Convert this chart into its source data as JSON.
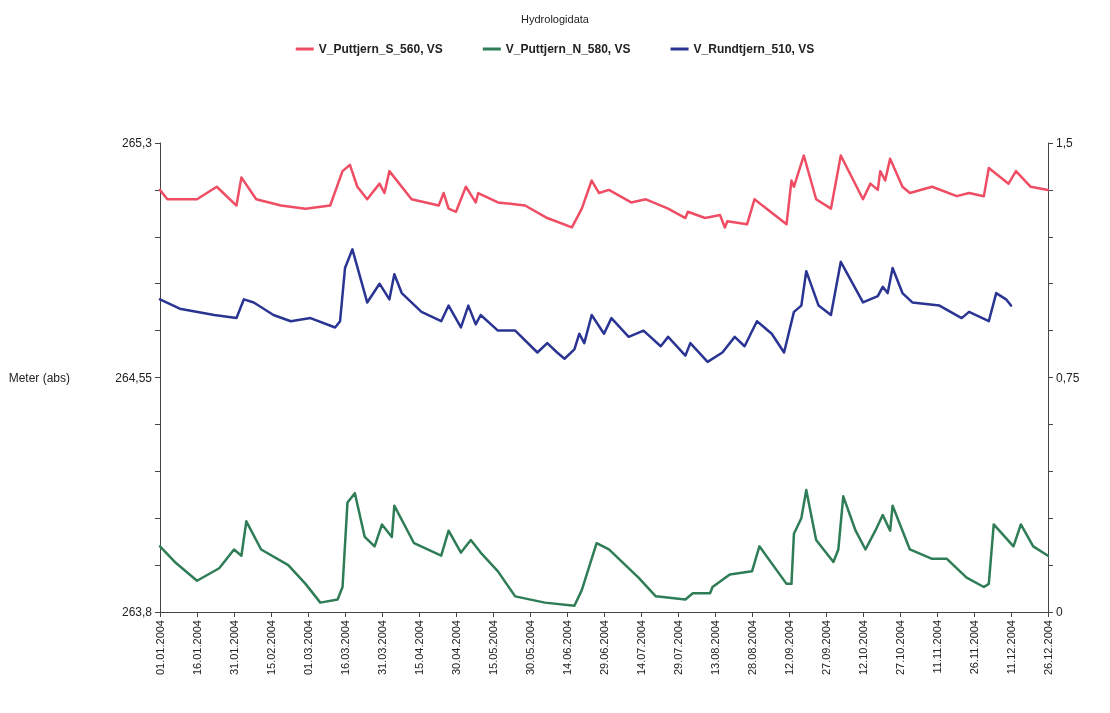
{
  "chart_data": {
    "type": "line",
    "title": "Hydrologidata",
    "ylabel": "Meter (abs)",
    "legend": "top",
    "grid": false,
    "xlim": [
      "2004-01-01",
      "2004-12-26"
    ],
    "xticks": [
      {
        "value": "2004-01-01",
        "label": "01.01.2004"
      },
      {
        "value": "2004-01-16",
        "label": "16.01.2004"
      },
      {
        "value": "2004-01-31",
        "label": "31.01.2004"
      },
      {
        "value": "2004-02-15",
        "label": "15.02.2004"
      },
      {
        "value": "2004-03-01",
        "label": "01.03.2004"
      },
      {
        "value": "2004-03-16",
        "label": "16.03.2004"
      },
      {
        "value": "2004-03-31",
        "label": "31.03.2004"
      },
      {
        "value": "2004-04-15",
        "label": "15.04.2004"
      },
      {
        "value": "2004-04-30",
        "label": "30.04.2004"
      },
      {
        "value": "2004-05-15",
        "label": "15.05.2004"
      },
      {
        "value": "2004-05-30",
        "label": "30.05.2004"
      },
      {
        "value": "2004-06-14",
        "label": "14.06.2004"
      },
      {
        "value": "2004-06-29",
        "label": "29.06.2004"
      },
      {
        "value": "2004-07-14",
        "label": "14.07.2004"
      },
      {
        "value": "2004-07-29",
        "label": "29.07.2004"
      },
      {
        "value": "2004-08-13",
        "label": "13.08.2004"
      },
      {
        "value": "2004-08-28",
        "label": "28.08.2004"
      },
      {
        "value": "2004-09-12",
        "label": "12.09.2004"
      },
      {
        "value": "2004-09-27",
        "label": "27.09.2004"
      },
      {
        "value": "2004-10-12",
        "label": "12.10.2004"
      },
      {
        "value": "2004-10-27",
        "label": "27.10.2004"
      },
      {
        "value": "2004-11-11",
        "label": "11.11.2004"
      },
      {
        "value": "2004-11-26",
        "label": "26.11.2004"
      },
      {
        "value": "2004-12-11",
        "label": "11.12.2004"
      },
      {
        "value": "2004-12-26",
        "label": "26.12.2004"
      }
    ],
    "ylim": [
      263.8,
      265.3
    ],
    "yticks": [
      {
        "value": 263.8,
        "label": "263,8"
      },
      {
        "value": 263.95,
        "label": null
      },
      {
        "value": 264.1,
        "label": null
      },
      {
        "value": 264.25,
        "label": null
      },
      {
        "value": 264.4,
        "label": null
      },
      {
        "value": 264.55,
        "label": "264,55"
      },
      {
        "value": 264.7,
        "label": null
      },
      {
        "value": 264.85,
        "label": null
      },
      {
        "value": 265.0,
        "label": null
      },
      {
        "value": 265.15,
        "label": null
      },
      {
        "value": 265.3,
        "label": "265,3"
      }
    ],
    "y2lim": [
      0,
      1.5
    ],
    "y2ticks": [
      0,
      {
        "value": 0.15,
        "label": null
      },
      {
        "value": 0.3,
        "label": null
      },
      {
        "value": 0.45,
        "label": null
      },
      {
        "value": 0.6,
        "label": null
      },
      {
        "value": 0.75,
        "label": "0,75"
      },
      {
        "value": 0.9,
        "label": null
      },
      {
        "value": 1.05,
        "label": null
      },
      {
        "value": 1.2,
        "label": null
      },
      {
        "value": 1.35,
        "label": null
      },
      {
        "value": 1.5,
        "label": "1,5"
      }
    ],
    "series": [
      {
        "name": "V_Puttjern_S_560, VS",
        "color": "#ee4d64",
        "x": [
          "2004-01-01",
          "2004-01-04",
          "2004-01-16",
          "2004-01-24",
          "2004-02-01",
          "2004-02-03",
          "2004-02-09",
          "2004-02-19",
          "2004-02-29",
          "2004-03-10",
          "2004-03-15",
          "2004-03-18",
          "2004-03-21",
          "2004-03-25",
          "2004-03-30",
          "2004-04-01",
          "2004-04-03",
          "2004-04-12",
          "2004-04-23",
          "2004-04-25",
          "2004-04-27",
          "2004-04-30",
          "2004-05-04",
          "2004-05-08",
          "2004-05-09",
          "2004-05-17",
          "2004-05-28",
          "2004-06-06",
          "2004-06-16",
          "2004-06-20",
          "2004-06-24",
          "2004-06-27",
          "2004-07-01",
          "2004-07-10",
          "2004-07-16",
          "2004-07-25",
          "2004-08-01",
          "2004-08-02",
          "2004-08-09",
          "2004-08-15",
          "2004-08-17",
          "2004-08-18",
          "2004-08-26",
          "2004-08-29",
          "2004-09-11",
          "2004-09-13",
          "2004-09-14",
          "2004-09-16",
          "2004-09-18",
          "2004-09-23",
          "2004-09-29",
          "2004-10-03",
          "2004-10-12",
          "2004-10-15",
          "2004-10-18",
          "2004-10-19",
          "2004-10-21",
          "2004-10-23",
          "2004-10-28",
          "2004-10-31",
          "2004-11-09",
          "2004-11-19",
          "2004-11-24",
          "2004-11-30",
          "2004-12-02",
          "2004-12-10",
          "2004-12-13",
          "2004-12-19",
          "2004-12-26"
        ],
        "values": [
          265.15,
          265.12,
          265.12,
          265.16,
          265.1,
          265.19,
          265.12,
          265.1,
          265.09,
          265.1,
          265.21,
          265.23,
          265.16,
          265.12,
          265.17,
          265.14,
          265.21,
          265.12,
          265.1,
          265.14,
          265.09,
          265.08,
          265.16,
          265.11,
          265.14,
          265.11,
          265.1,
          265.06,
          265.03,
          265.09,
          265.18,
          265.14,
          265.15,
          265.11,
          265.12,
          265.09,
          265.06,
          265.08,
          265.06,
          265.07,
          265.03,
          265.05,
          265.04,
          265.12,
          265.04,
          265.18,
          265.16,
          265.21,
          265.26,
          265.12,
          265.09,
          265.26,
          265.12,
          265.17,
          265.15,
          265.21,
          265.18,
          265.25,
          265.16,
          265.14,
          265.16,
          265.13,
          265.14,
          265.13,
          265.22,
          265.17,
          265.21,
          265.16,
          265.15
        ]
      },
      {
        "name": "V_Puttjern_N_580, VS",
        "color": "#2e7d56",
        "x": [
          "2004-01-01",
          "2004-01-07",
          "2004-01-16",
          "2004-01-25",
          "2004-01-31",
          "2004-02-03",
          "2004-02-05",
          "2004-02-11",
          "2004-02-22",
          "2004-02-29",
          "2004-03-06",
          "2004-03-13",
          "2004-03-15",
          "2004-03-17",
          "2004-03-20",
          "2004-03-24",
          "2004-03-28",
          "2004-03-31",
          "2004-04-04",
          "2004-04-05",
          "2004-04-13",
          "2004-04-24",
          "2004-04-27",
          "2004-05-02",
          "2004-05-06",
          "2004-05-10",
          "2004-05-17",
          "2004-05-24",
          "2004-06-05",
          "2004-06-17",
          "2004-06-20",
          "2004-06-26",
          "2004-07-01",
          "2004-07-13",
          "2004-07-20",
          "2004-08-01",
          "2004-08-04",
          "2004-08-11",
          "2004-08-12",
          "2004-08-19",
          "2004-08-28",
          "2004-08-31",
          "2004-09-11",
          "2004-09-13",
          "2004-09-14",
          "2004-09-17",
          "2004-09-19",
          "2004-09-23",
          "2004-09-30",
          "2004-10-02",
          "2004-10-04",
          "2004-10-09",
          "2004-10-13",
          "2004-10-17",
          "2004-10-20",
          "2004-10-23",
          "2004-10-24",
          "2004-10-31",
          "2004-11-09",
          "2004-11-15",
          "2004-11-23",
          "2004-11-30",
          "2004-12-02",
          "2004-12-04",
          "2004-12-12",
          "2004-12-15",
          "2004-12-20",
          "2004-12-26"
        ],
        "values": [
          264.01,
          263.96,
          263.9,
          263.94,
          264.0,
          263.98,
          264.09,
          264.0,
          263.95,
          263.89,
          263.83,
          263.84,
          263.88,
          264.15,
          264.18,
          264.04,
          264.01,
          264.08,
          264.04,
          264.14,
          264.02,
          263.98,
          264.06,
          263.99,
          264.03,
          263.99,
          263.93,
          263.85,
          263.83,
          263.82,
          263.87,
          264.02,
          264.0,
          263.91,
          263.85,
          263.84,
          263.86,
          263.86,
          263.88,
          263.92,
          263.93,
          264.01,
          263.89,
          263.89,
          264.05,
          264.1,
          264.19,
          264.03,
          263.96,
          264.0,
          264.17,
          264.06,
          264.0,
          264.06,
          264.11,
          264.06,
          264.14,
          264.0,
          263.97,
          263.97,
          263.91,
          263.88,
          263.89,
          264.08,
          264.01,
          264.08,
          264.01,
          263.98
        ]
      },
      {
        "name": "V_Rundtjern_510, VS",
        "color": "#2a3492",
        "x": [
          "2004-01-01",
          "2004-01-09",
          "2004-01-23",
          "2004-02-01",
          "2004-02-04",
          "2004-02-08",
          "2004-02-16",
          "2004-02-23",
          "2004-03-02",
          "2004-03-12",
          "2004-03-14",
          "2004-03-16",
          "2004-03-19",
          "2004-03-25",
          "2004-03-30",
          "2004-04-03",
          "2004-04-05",
          "2004-04-08",
          "2004-04-16",
          "2004-04-24",
          "2004-04-27",
          "2004-05-02",
          "2004-05-05",
          "2004-05-08",
          "2004-05-10",
          "2004-05-17",
          "2004-05-24",
          "2004-06-02",
          "2004-06-06",
          "2004-06-10",
          "2004-06-13",
          "2004-06-17",
          "2004-06-19",
          "2004-06-21",
          "2004-06-24",
          "2004-06-29",
          "2004-07-02",
          "2004-07-09",
          "2004-07-15",
          "2004-07-22",
          "2004-07-25",
          "2004-08-01",
          "2004-08-03",
          "2004-08-10",
          "2004-08-16",
          "2004-08-21",
          "2004-08-25",
          "2004-08-30",
          "2004-09-05",
          "2004-09-10",
          "2004-09-14",
          "2004-09-17",
          "2004-09-19",
          "2004-09-24",
          "2004-09-29",
          "2004-10-03",
          "2004-10-12",
          "2004-10-18",
          "2004-10-20",
          "2004-10-22",
          "2004-10-24",
          "2004-10-28",
          "2004-11-01",
          "2004-11-12",
          "2004-11-21",
          "2004-11-24",
          "2004-12-02",
          "2004-12-05",
          "2004-12-09",
          "2004-12-11"
        ],
        "values": [
          264.8,
          264.77,
          264.75,
          264.74,
          264.8,
          264.79,
          264.75,
          264.73,
          264.74,
          264.71,
          264.73,
          264.9,
          264.96,
          264.79,
          264.85,
          264.8,
          264.88,
          264.82,
          264.76,
          264.73,
          264.78,
          264.71,
          264.78,
          264.72,
          264.75,
          264.7,
          264.7,
          264.63,
          264.66,
          264.63,
          264.61,
          264.64,
          264.69,
          264.66,
          264.75,
          264.69,
          264.74,
          264.68,
          264.7,
          264.65,
          264.68,
          264.62,
          264.66,
          264.6,
          264.63,
          264.68,
          264.65,
          264.73,
          264.69,
          264.63,
          264.76,
          264.78,
          264.89,
          264.78,
          264.75,
          264.92,
          264.79,
          264.81,
          264.84,
          264.82,
          264.9,
          264.82,
          264.79,
          264.78,
          264.74,
          264.76,
          264.73,
          264.82,
          264.8,
          264.78
        ]
      }
    ]
  }
}
